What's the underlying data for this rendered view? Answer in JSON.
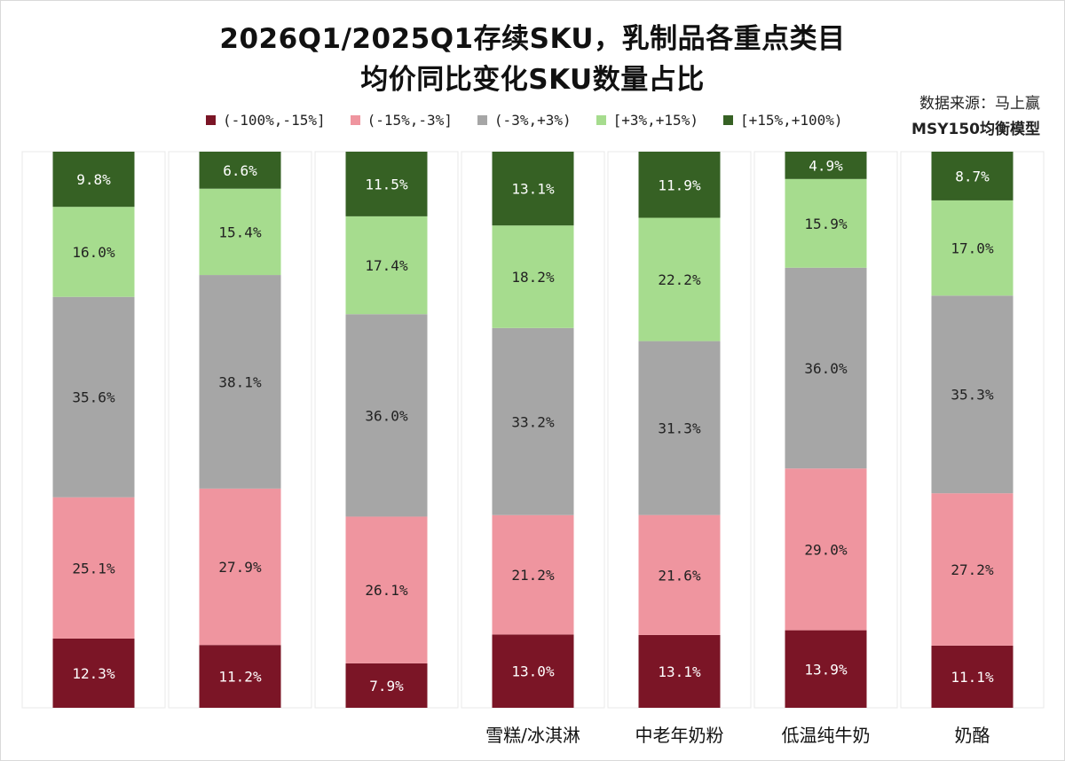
{
  "title_line1": "2026Q1/2025Q1存续SKU，乳制品各重点类目",
  "title_line2": "均价同比变化SKU数量占比",
  "source_line1": "数据来源：马上赢",
  "source_line2": "MSY150均衡模型",
  "colors": {
    "band_low": "#7b1526",
    "band_midlow": "#ef959f",
    "band_mid": "#a6a6a6",
    "band_midhigh": "#a6dc8e",
    "band_high": "#366124",
    "stripe": "#e8e8e8"
  },
  "legend": [
    {
      "label": "(-100%,-15%]",
      "color": "#7b1526"
    },
    {
      "label": "(-15%,-3%]",
      "color": "#ef959f"
    },
    {
      "label": "(-3%,+3%)",
      "color": "#a6a6a6"
    },
    {
      "label": "[+3%,+15%)",
      "color": "#a6dc8e"
    },
    {
      "label": "[+15%,+100%)",
      "color": "#366124"
    }
  ],
  "chart_data": {
    "type": "bar",
    "stacked": true,
    "normalized": true,
    "orientation": "vertical",
    "categories": [
      "",
      "",
      "",
      "雪糕/冰淇淋",
      "中老年奶粉",
      "低温纯牛奶",
      "奶酪"
    ],
    "series": [
      {
        "name": "(-100%,-15%]",
        "values": [
          12.3,
          11.2,
          7.9,
          13.0,
          13.1,
          13.9,
          11.1
        ],
        "labels": [
          "12.3%",
          "11.2%",
          "7.9%",
          "13.0%",
          "13.1%",
          "13.9%",
          "11.1%"
        ]
      },
      {
        "name": "(-15%,-3%]",
        "values": [
          25.1,
          27.9,
          26.1,
          21.2,
          21.6,
          29.0,
          27.2
        ],
        "labels": [
          "25.1%",
          "27.9%",
          "26.1%",
          "21.2%",
          "21.6%",
          "29.0%",
          "27.2%"
        ]
      },
      {
        "name": "(-3%,+3%)",
        "values": [
          35.6,
          38.1,
          36.0,
          33.2,
          31.3,
          36.0,
          35.3
        ],
        "labels": [
          "35.6%",
          "38.1%",
          "36.0%",
          "33.2%",
          "31.3%",
          "36.0%",
          "35.3%"
        ]
      },
      {
        "name": "[+3%,+15%)",
        "values": [
          16.0,
          15.4,
          17.4,
          18.2,
          22.2,
          15.9,
          17.0
        ],
        "labels": [
          "16.0%",
          "15.4%",
          "17.4%",
          "18.2%",
          "22.2%",
          "15.9%",
          "17.0%"
        ]
      },
      {
        "name": "[+15%,+100%)",
        "values": [
          9.8,
          6.6,
          11.5,
          13.1,
          11.9,
          4.9,
          8.7
        ],
        "labels": [
          "9.8%",
          "6.6%",
          "11.5%",
          "13.1%",
          "11.9%",
          "4.9%",
          "8.7%"
        ]
      }
    ],
    "ylim": [
      0,
      100
    ],
    "grid": false,
    "legend_position": "top"
  }
}
